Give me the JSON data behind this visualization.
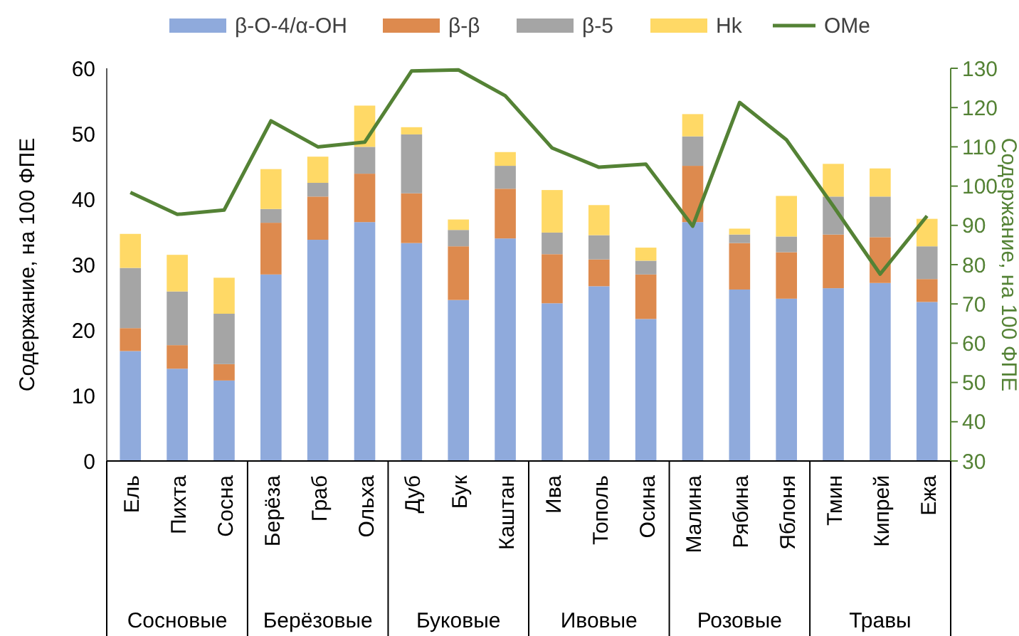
{
  "chart_data": {
    "type": "bar",
    "stacked": true,
    "ylabel": "Содержание, на 100 ФПЕ",
    "y2label": "Содержание, на 100 ФПЕ",
    "categories": [
      "Ель",
      "Пихта",
      "Сосна",
      "Берёза",
      "Граб",
      "Ольха",
      "Дуб",
      "Бук",
      "Каштан",
      "Ива",
      "Тополь",
      "Осина",
      "Малина",
      "Рябина",
      "Яблоня",
      "Тмин",
      "Кипрей",
      "Ежа"
    ],
    "series": [
      {
        "name": "β-O-4/α-OH",
        "color": "#8faadc",
        "values": [
          16.8,
          14.1,
          12.3,
          28.5,
          33.8,
          36.5,
          33.3,
          24.6,
          34.0,
          24.1,
          26.7,
          21.7,
          36.5,
          26.2,
          24.8,
          26.4,
          27.2,
          24.3
        ]
      },
      {
        "name": "β-β",
        "color": "#dd8a4e",
        "values": [
          3.5,
          3.6,
          2.5,
          7.9,
          6.6,
          7.4,
          7.6,
          8.2,
          7.6,
          7.5,
          4.1,
          6.8,
          8.6,
          7.1,
          7.1,
          8.2,
          7.0,
          3.5
        ]
      },
      {
        "name": "β-5",
        "color": "#a5a5a5",
        "values": [
          9.2,
          8.2,
          7.7,
          2.1,
          2.1,
          4.1,
          9.0,
          2.5,
          3.5,
          3.3,
          3.7,
          2.1,
          4.5,
          1.3,
          2.4,
          5.8,
          6.2,
          5.0
        ]
      },
      {
        "name": "Hk",
        "color": "#ffd966",
        "values": [
          5.2,
          5.6,
          5.5,
          6.1,
          4.0,
          6.3,
          1.1,
          1.6,
          2.1,
          6.5,
          4.6,
          2.0,
          3.4,
          0.9,
          6.2,
          5.0,
          4.3,
          4.2
        ]
      },
      {
        "name": "OMe",
        "type": "line",
        "axis": "y2",
        "color": "#548235",
        "values": [
          98.4,
          92.8,
          93.9,
          116.6,
          110.0,
          111.2,
          129.3,
          129.6,
          123.0,
          109.7,
          104.8,
          105.6,
          89.8,
          121.3,
          111.8,
          94.9,
          77.6,
          92.4
        ]
      }
    ],
    "ylim": [
      0,
      60
    ],
    "yticks": [
      0,
      10,
      20,
      30,
      40,
      50,
      60
    ],
    "y2lim": [
      30,
      130
    ],
    "y2ticks": [
      30,
      40,
      50,
      60,
      70,
      80,
      90,
      100,
      110,
      120,
      130
    ],
    "legend": "top",
    "grid": false,
    "marker": "none",
    "line_style": "solid",
    "annotations": [
      "Сосновые",
      "Берёзовые",
      "Буковые",
      "Ивовые",
      "Розовые",
      "Травы"
    ]
  }
}
